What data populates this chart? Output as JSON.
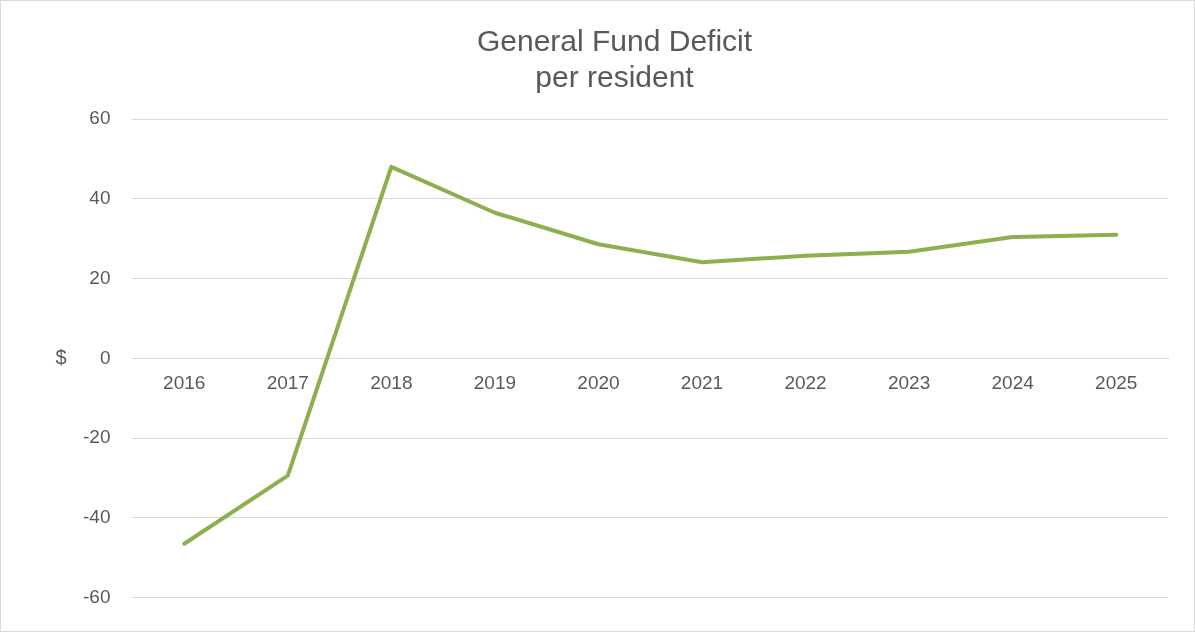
{
  "chart_data": {
    "type": "line",
    "title": "General Fund Deficit\nper resident",
    "ylabel": "$",
    "categories": [
      "2016",
      "2017",
      "2018",
      "2019",
      "2020",
      "2021",
      "2022",
      "2023",
      "2024",
      "2025"
    ],
    "series": [
      {
        "color": "#8db04f",
        "values": [
          -46.5,
          -29.4,
          48,
          36.5,
          28.6,
          24.1,
          25.7,
          26.7,
          30.4,
          31
        ]
      }
    ],
    "ylim": [
      -60,
      60
    ],
    "yticks": [
      -60,
      -40,
      -20,
      0,
      20,
      40,
      60
    ],
    "grid": "y",
    "legend": false,
    "marker": "none",
    "line_style": "solid"
  }
}
